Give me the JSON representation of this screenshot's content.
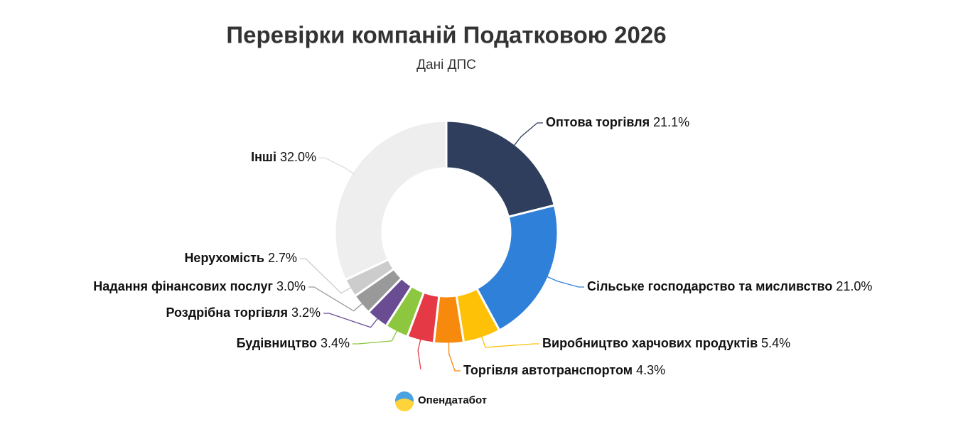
{
  "chart_data": {
    "type": "donut",
    "title": "Перевірки компаній Податковою 2026",
    "subtitle": "Дані ДПС",
    "categories": [
      "Оптова торгівля",
      "Сільське господарство та мисливство",
      "Виробництво харчових продуктів",
      "Торгівля автотранспортом",
      null,
      "Будівництво",
      "Роздрібна торгівля",
      "Надання фінансових послуг",
      "Нерухомість",
      "Інші"
    ],
    "values": [
      21.1,
      21.0,
      5.4,
      4.3,
      3.9,
      3.4,
      3.2,
      3.0,
      2.7,
      32.0
    ],
    "value_labels": [
      "21.1%",
      "21.0%",
      "5.4%",
      "4.3%",
      null,
      "3.4%",
      "3.2%",
      "3.0%",
      "2.7%",
      "32.0%"
    ],
    "colors": [
      "#2e3e5c",
      "#2f80d9",
      "#ffc107",
      "#f7890c",
      "#e63946",
      "#8dc63f",
      "#6a4c93",
      "#999999",
      "#cccccc",
      "#eeeeee"
    ],
    "brand": "Опендатабот"
  }
}
